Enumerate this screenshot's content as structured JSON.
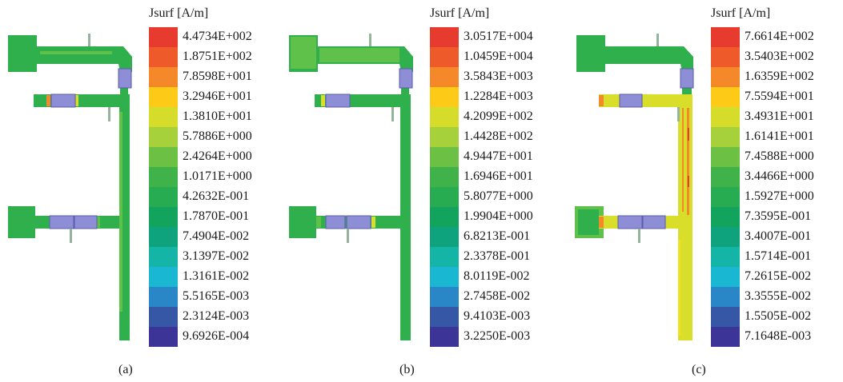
{
  "legend_title": "Jsurf [A/m]",
  "legend_colors": [
    "#e63b2e",
    "#ef5a2a",
    "#f5892a",
    "#fdca18",
    "#d6dc2a",
    "#a6d13a",
    "#6cc044",
    "#3fb34a",
    "#27ac52",
    "#12a45c",
    "#0ea27d",
    "#14b5a6",
    "#19b7d1",
    "#2a87c7",
    "#3656a6",
    "#3c3496"
  ],
  "field_colors": {
    "base": "#30b04c",
    "light": "#5fc04a",
    "yellow": "#d9de2a",
    "yellow_hi": "#efe120",
    "orange": "#f28a2a",
    "red": "#e0402c",
    "port": "#8d8ed6",
    "port_edge": "#5b5cab",
    "pin": "#93b49b"
  },
  "panels": [
    {
      "caption": "(a)",
      "labels": [
        "4.4734E+002",
        "1.8751E+002",
        "7.8598E+001",
        "3.2946E+001",
        "1.3810E+001",
        "5.7886E+000",
        "2.4264E+000",
        "1.0171E+000",
        "4.2632E-001",
        "1.7870E-001",
        "7.4904E-002",
        "3.1397E-002",
        "1.3161E-002",
        "5.5165E-003",
        "2.3124E-003",
        "9.6926E-004"
      ]
    },
    {
      "caption": "(b)",
      "labels": [
        "3.0517E+004",
        "1.0459E+004",
        "3.5843E+003",
        "1.2284E+003",
        "4.2099E+002",
        "1.4428E+002",
        "4.9447E+001",
        "1.6946E+001",
        "5.8077E+000",
        "1.9904E+000",
        "6.8213E-001",
        "2.3378E-001",
        "8.0119E-002",
        "2.7458E-002",
        "9.4103E-003",
        "3.2250E-003"
      ]
    },
    {
      "caption": "(c)",
      "labels": [
        "7.6614E+002",
        "3.5403E+002",
        "1.6359E+002",
        "7.5594E+001",
        "3.4931E+001",
        "1.6141E+001",
        "7.4588E+000",
        "3.4466E+000",
        "1.5927E+000",
        "7.3595E-001",
        "3.4007E-001",
        "1.5714E-001",
        "7.2615E-002",
        "3.3555E-002",
        "1.5505E-002",
        "7.1648E-003"
      ]
    }
  ]
}
